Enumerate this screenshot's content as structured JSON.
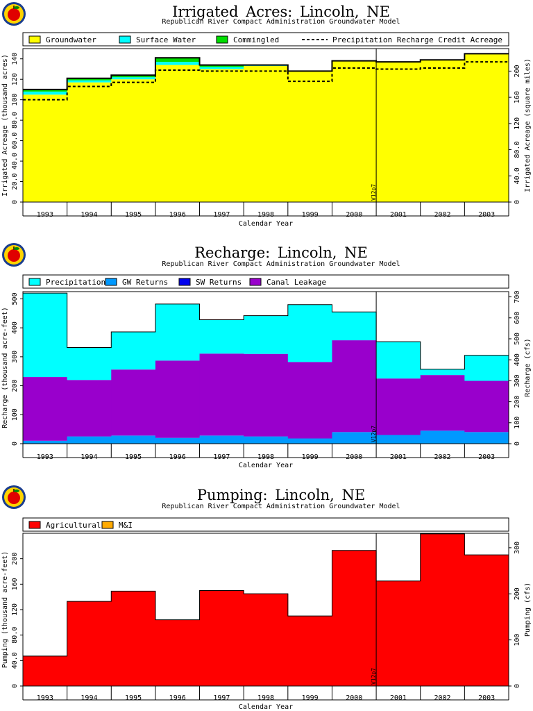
{
  "colors": {
    "groundwater": "#ffff00",
    "surface_water": "#00ffff",
    "commingled": "#00dd00",
    "precip_recharge_line": "#000000",
    "precipitation": "#00ffff",
    "gw_returns": "#0099ff",
    "sw_returns": "#0000ee",
    "canal_leakage": "#9900cc",
    "agricultural": "#ff0000",
    "mi": "#ffaa00"
  },
  "logo": {
    "icon": "apple-logo-icon"
  },
  "chart_data": [
    {
      "type": "area",
      "title": "Irrigated Acres: Lincoln, NE",
      "subtitle": "Republican River Compact Administration Groundwater Model",
      "xlabel": "Calendar Year",
      "ylabel": "Irrigated Acreage (thousand acres)",
      "ylabel_right": "Irrigated Acreage (square miles)",
      "categories": [
        "1993",
        "1994",
        "1995",
        "1996",
        "1997",
        "1998",
        "1999",
        "2000",
        "2001",
        "2002",
        "2003"
      ],
      "ylim": [
        0,
        150
      ],
      "yticks": [
        "0",
        "20.0",
        "40.0",
        "60.0",
        "80.0",
        "100",
        "120",
        "140"
      ],
      "ytick_values": [
        0,
        20,
        40,
        60,
        80,
        100,
        120,
        140
      ],
      "yticks_right": [
        "0",
        "40.0",
        "80.0",
        "120",
        "160",
        "200"
      ],
      "ytick_right_values": [
        0,
        40,
        80,
        120,
        160,
        200
      ],
      "right_scale": 1.5625,
      "marker": {
        "label": "V12p7",
        "year": "2001"
      },
      "series": [
        {
          "name": "Groundwater",
          "values": [
            105,
            117,
            120,
            134,
            130,
            133,
            128,
            138,
            137,
            139,
            145
          ]
        },
        {
          "name": "Surface Water",
          "values": [
            3,
            2,
            2,
            3,
            2,
            1,
            0,
            0,
            0,
            0,
            0
          ]
        },
        {
          "name": "Commingled",
          "values": [
            2,
            2,
            2,
            4,
            2,
            0,
            0,
            0,
            0,
            0,
            0
          ]
        },
        {
          "name": "Precipitation Recharge Credit Acreage",
          "values": [
            100,
            113,
            117,
            129,
            128,
            128,
            118,
            131,
            130,
            131,
            137
          ]
        }
      ]
    },
    {
      "type": "area",
      "title": "Recharge: Lincoln, NE",
      "subtitle": "Republican River Compact Administration Groundwater Model",
      "xlabel": "Calendar Year",
      "ylabel": "Recharge (thousand acre-feet)",
      "ylabel_right": "Recharge (cfs)",
      "categories": [
        "1993",
        "1994",
        "1995",
        "1996",
        "1997",
        "1998",
        "1999",
        "2000",
        "2001",
        "2002",
        "2003"
      ],
      "ylim": [
        0,
        525
      ],
      "yticks": [
        "0",
        "100",
        "200",
        "300",
        "400",
        "500"
      ],
      "ytick_values": [
        0,
        100,
        200,
        300,
        400,
        500
      ],
      "yticks_right": [
        "0",
        "100",
        "200",
        "300",
        "400",
        "500",
        "600",
        "700"
      ],
      "ytick_right_values": [
        0,
        100,
        200,
        300,
        400,
        500,
        600,
        700
      ],
      "right_scale": 1.381,
      "marker": {
        "label": "V12p7",
        "year": "2001"
      },
      "series": [
        {
          "name": "Precipitation",
          "values": [
            290,
            112,
            130,
            195,
            117,
            132,
            198,
            98,
            127,
            20,
            88
          ]
        },
        {
          "name": "GW Returns",
          "values": [
            10,
            25,
            28,
            20,
            28,
            25,
            18,
            40,
            30,
            45,
            40
          ]
        },
        {
          "name": "SW Returns",
          "values": [
            0,
            0,
            0,
            0,
            0,
            0,
            0,
            0,
            0,
            0,
            0
          ]
        },
        {
          "name": "Canal Leakage",
          "values": [
            220,
            195,
            228,
            267,
            283,
            285,
            264,
            317,
            195,
            192,
            177
          ]
        }
      ]
    },
    {
      "type": "area",
      "title": "Pumping: Lincoln, NE",
      "subtitle": "Republican River Compact Administration Groundwater Model",
      "xlabel": "Calendar Year",
      "ylabel": "Pumping (thousand acre-feet)",
      "ylabel_right": "Pumping (cfs)",
      "categories": [
        "1993",
        "1994",
        "1995",
        "1996",
        "1997",
        "1998",
        "1999",
        "2000",
        "2001",
        "2002",
        "2003"
      ],
      "ylim": [
        0,
        240
      ],
      "yticks": [
        "0",
        "40.0",
        "80.0",
        "120",
        "160",
        "200"
      ],
      "ytick_values": [
        0,
        40,
        80,
        120,
        160,
        200
      ],
      "yticks_right": [
        "0",
        "100",
        "200",
        "300"
      ],
      "ytick_right_values": [
        0,
        100,
        200,
        300
      ],
      "right_scale": 1.381,
      "marker": {
        "label": "V12p7",
        "year": "2001"
      },
      "series": [
        {
          "name": "Agricultural",
          "values": [
            47,
            133,
            149,
            104,
            150,
            145,
            110,
            213,
            165,
            239,
            206
          ]
        },
        {
          "name": "M&I",
          "values": [
            0,
            0,
            0,
            0,
            0,
            0,
            0,
            0,
            0,
            0,
            0
          ]
        }
      ]
    }
  ]
}
